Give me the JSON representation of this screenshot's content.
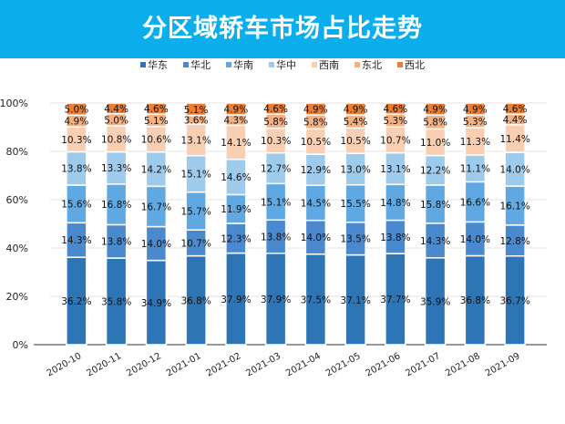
{
  "chart_data": {
    "type": "bar",
    "stacked": "percent",
    "title": "分区域轿车市场占比走势",
    "xlabel": "",
    "ylabel": "",
    "ylim": [
      0,
      100
    ],
    "yticks": [
      "0%",
      "20%",
      "40%",
      "60%",
      "80%",
      "100%"
    ],
    "grid": true,
    "legend_position": "top",
    "categories": [
      "2020-10",
      "2020-11",
      "2020-12",
      "2021-01",
      "2021-02",
      "2021-03",
      "2021-04",
      "2021-05",
      "2021-06",
      "2021-07",
      "2021-08",
      "2021-09"
    ],
    "series": [
      {
        "name": "华东",
        "color": "#2e75b6",
        "values": [
          36.2,
          35.8,
          34.9,
          36.8,
          37.9,
          37.9,
          37.5,
          37.1,
          37.7,
          35.9,
          36.8,
          36.7
        ]
      },
      {
        "name": "华北",
        "color": "#4a89cd",
        "values": [
          14.3,
          13.8,
          14.0,
          10.7,
          12.3,
          13.8,
          14.0,
          13.5,
          13.8,
          14.3,
          14.0,
          12.8
        ]
      },
      {
        "name": "华南",
        "color": "#5fa8e2",
        "values": [
          15.6,
          16.8,
          16.7,
          15.7,
          11.9,
          15.1,
          14.5,
          15.5,
          14.8,
          15.8,
          16.6,
          16.1
        ]
      },
      {
        "name": "华中",
        "color": "#9ecaeb",
        "values": [
          13.8,
          13.3,
          14.2,
          15.1,
          14.6,
          12.7,
          12.9,
          13.0,
          13.1,
          12.2,
          11.1,
          14.0
        ]
      },
      {
        "name": "西南",
        "color": "#f8cfb2",
        "values": [
          10.3,
          10.8,
          10.6,
          13.1,
          14.1,
          10.3,
          10.5,
          10.5,
          10.7,
          11.0,
          11.3,
          11.4
        ]
      },
      {
        "name": "东北",
        "color": "#f4b183",
        "values": [
          4.9,
          5.0,
          5.1,
          3.6,
          4.3,
          5.8,
          5.8,
          5.4,
          5.3,
          5.8,
          5.3,
          4.4
        ]
      },
      {
        "name": "西北",
        "color": "#ed7d31",
        "values": [
          5.0,
          4.4,
          4.6,
          5.1,
          4.9,
          4.6,
          4.9,
          4.9,
          4.6,
          4.9,
          4.9,
          4.6
        ]
      }
    ]
  }
}
